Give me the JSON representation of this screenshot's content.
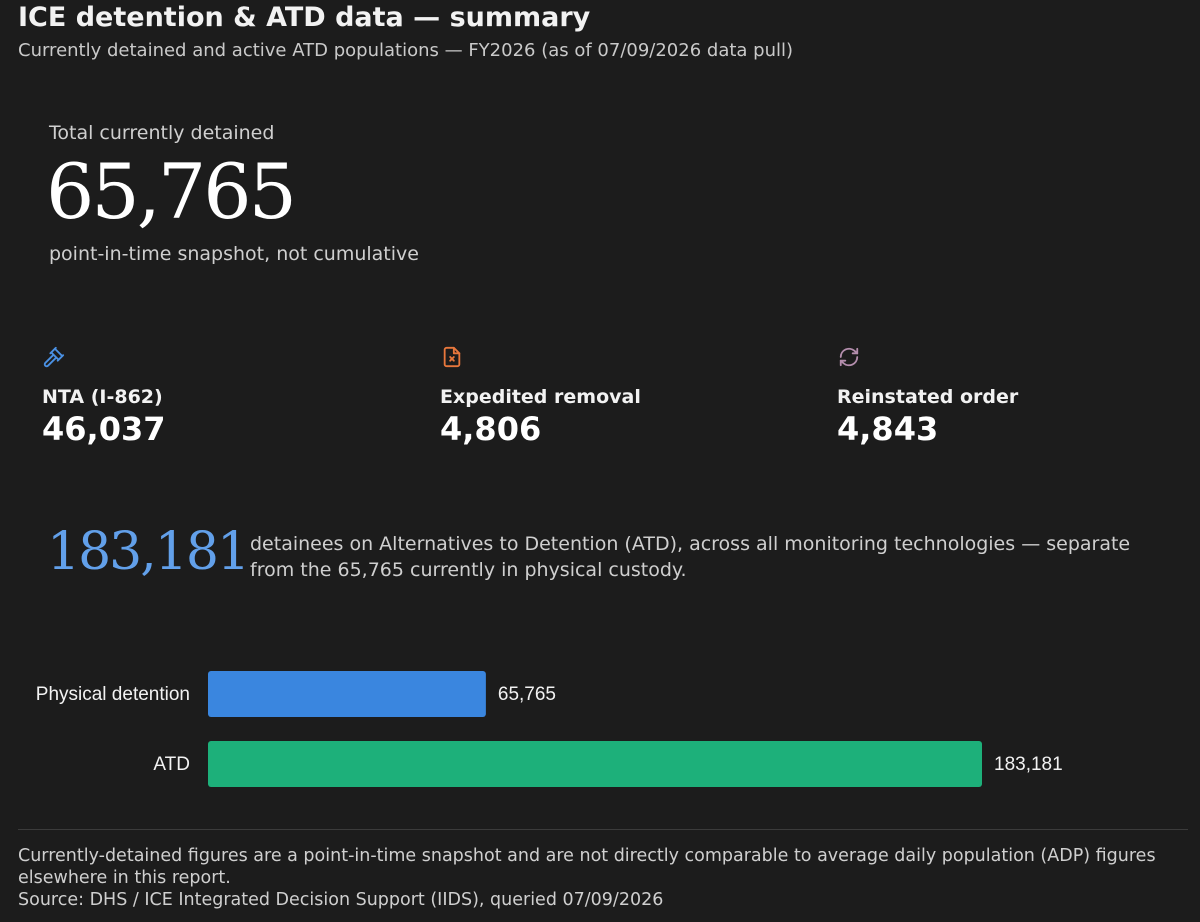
{
  "header": {
    "title": "ICE detention & ATD data — summary",
    "subtitle": "Currently detained and active ATD populations — FY2026 (as of 07/09/2026 data pull)"
  },
  "total": {
    "label": "Total currently detained",
    "value": "65,765",
    "note": "point-in-time snapshot, not cumulative"
  },
  "stats": [
    {
      "label": "NTA (I-862)",
      "value": "46,037",
      "icon": "gavel-icon",
      "color": "#4a90e2"
    },
    {
      "label": "Expedited removal",
      "value": "4,806",
      "icon": "document-x-icon",
      "color": "#e8773c"
    },
    {
      "label": "Reinstated order",
      "value": "4,843",
      "icon": "refresh-icon",
      "color": "#b48ead"
    }
  ],
  "atd": {
    "value": "183,181",
    "description": "detainees on Alternatives to Detention (ATD), across all monitoring technologies — separate from the 65,765 currently in physical custody."
  },
  "chart_data": {
    "type": "bar",
    "orientation": "horizontal",
    "categories": [
      "Physical detention",
      "ATD"
    ],
    "values": [
      65765,
      183181
    ],
    "value_labels": [
      "65,765",
      "183,181"
    ],
    "colors": [
      "#3a86df",
      "#1db07a"
    ],
    "xlim": [
      0,
      183181
    ],
    "grid": false
  },
  "footnote": {
    "text": "Currently-detained figures are a point-in-time snapshot and are not directly comparable to average daily population (ADP) figures elsewhere in this report.",
    "source": "Source: DHS / ICE Integrated Decision Support (IIDS), queried 07/09/2026"
  }
}
